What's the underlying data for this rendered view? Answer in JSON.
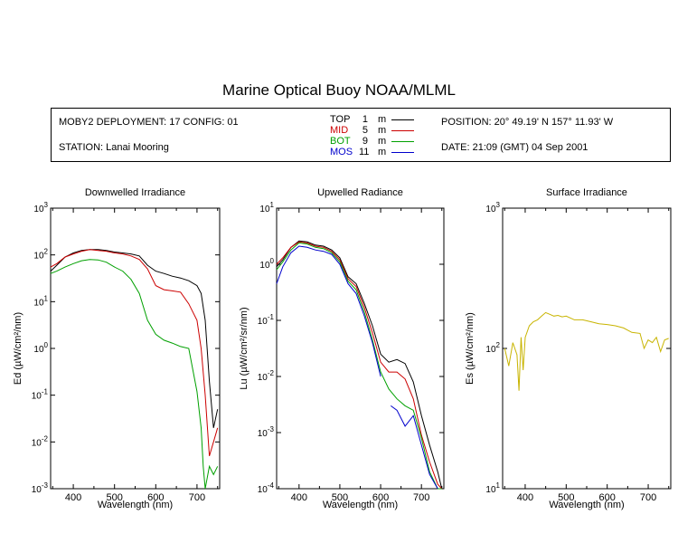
{
  "title": "Marine Optical Buoy NOAA/MLML",
  "header": {
    "deployment": "MOBY2 DEPLOYMENT: 17 CONFIG: 01",
    "station": "STATION: Lanai Mooring",
    "position": "POSITION: 20° 49.19' N   157° 11.93' W",
    "date": "DATE: 21:09 (GMT) 04 Sep 2001"
  },
  "legend": [
    {
      "label": "TOP",
      "depth": "1",
      "unit": "m",
      "color": "#000000"
    },
    {
      "label": "MID",
      "depth": "5",
      "unit": "m",
      "color": "#cc0000"
    },
    {
      "label": "BOT",
      "depth": "9",
      "unit": "m",
      "color": "#00a000"
    },
    {
      "label": "MOS",
      "depth": "11",
      "unit": "m",
      "color": "#0000cc"
    }
  ],
  "chart_data": [
    {
      "type": "line",
      "title": "Downwelled Irradiance",
      "xlabel": "Wavelength (nm)",
      "ylabel": "Ed  (µW/cm²/nm)",
      "xlim": [
        345,
        755
      ],
      "ylim": [
        0.001,
        1000
      ],
      "yscale": "log",
      "xticks": [
        400,
        500,
        600,
        700
      ],
      "yticks": [
        {
          "v": 0.001,
          "b": "10",
          "e": "-3"
        },
        {
          "v": 0.01,
          "b": "10",
          "e": "-2"
        },
        {
          "v": 0.1,
          "b": "10",
          "e": "-1"
        },
        {
          "v": 1,
          "b": "10",
          "e": "0"
        },
        {
          "v": 10,
          "b": "10",
          "e": "1"
        },
        {
          "v": 100,
          "b": "10",
          "e": "2"
        },
        {
          "v": 1000,
          "b": "10",
          "e": "3"
        }
      ],
      "series": [
        {
          "name": "TOP",
          "color": "#000000",
          "x": [
            345,
            360,
            380,
            400,
            420,
            440,
            460,
            480,
            500,
            520,
            540,
            560,
            580,
            600,
            620,
            640,
            660,
            680,
            700,
            710,
            720,
            730,
            740,
            750
          ],
          "y": [
            45,
            60,
            90,
            110,
            125,
            130,
            130,
            125,
            115,
            110,
            105,
            95,
            60,
            45,
            40,
            35,
            32,
            28,
            22,
            15,
            4,
            0.2,
            0.02,
            0.05
          ]
        },
        {
          "name": "MID",
          "color": "#cc0000",
          "x": [
            345,
            360,
            380,
            400,
            420,
            440,
            460,
            480,
            500,
            520,
            540,
            560,
            580,
            600,
            620,
            640,
            660,
            680,
            700,
            710,
            720,
            730,
            740,
            750
          ],
          "y": [
            55,
            65,
            90,
            105,
            120,
            130,
            125,
            120,
            110,
            105,
            95,
            80,
            50,
            22,
            18,
            17,
            16,
            9,
            4,
            1,
            0.1,
            0.005,
            0.01,
            0.02
          ]
        },
        {
          "name": "BOT",
          "color": "#00a000",
          "x": [
            345,
            360,
            380,
            400,
            420,
            440,
            460,
            480,
            500,
            520,
            540,
            560,
            580,
            600,
            620,
            640,
            660,
            680,
            700,
            710,
            715,
            720,
            730,
            740,
            750
          ],
          "y": [
            40,
            45,
            55,
            65,
            75,
            80,
            78,
            70,
            55,
            45,
            30,
            15,
            4,
            2,
            1.5,
            1.3,
            1.1,
            1,
            0.12,
            0.02,
            0.003,
            0.001,
            0.003,
            0.002,
            0.003
          ]
        }
      ]
    },
    {
      "type": "line",
      "title": "Upwelled Radiance",
      "xlabel": "Wavelength (nm)",
      "ylabel": "Lu  (µW/cm²/sr/nm)",
      "xlim": [
        345,
        755
      ],
      "ylim": [
        0.0001,
        10
      ],
      "yscale": "log",
      "xticks": [
        400,
        500,
        600,
        700
      ],
      "yticks": [
        {
          "v": 0.0001,
          "b": "10",
          "e": "-4"
        },
        {
          "v": 0.001,
          "b": "10",
          "e": "-3"
        },
        {
          "v": 0.01,
          "b": "10",
          "e": "-2"
        },
        {
          "v": 0.1,
          "b": "10",
          "e": "-1"
        },
        {
          "v": 1,
          "b": "10",
          "e": "0"
        },
        {
          "v": 10,
          "b": "10",
          "e": "1"
        }
      ],
      "series": [
        {
          "name": "TOP",
          "color": "#000000",
          "x": [
            345,
            360,
            380,
            400,
            420,
            440,
            460,
            480,
            500,
            520,
            540,
            560,
            580,
            600,
            620,
            640,
            660,
            680,
            700,
            720,
            740,
            750
          ],
          "y": [
            0.9,
            1.2,
            2,
            2.6,
            2.5,
            2.2,
            2.1,
            1.8,
            1.3,
            0.6,
            0.45,
            0.2,
            0.08,
            0.025,
            0.018,
            0.02,
            0.017,
            0.008,
            0.002,
            0.0006,
            0.0002,
            0.0001
          ]
        },
        {
          "name": "MID",
          "color": "#cc0000",
          "x": [
            345,
            360,
            380,
            400,
            420,
            440,
            460,
            480,
            500,
            520,
            540,
            560,
            580,
            600,
            620,
            640,
            660,
            680,
            700,
            720,
            740,
            750
          ],
          "y": [
            1,
            1.3,
            2,
            2.5,
            2.4,
            2.1,
            2,
            1.7,
            1.2,
            0.55,
            0.4,
            0.17,
            0.06,
            0.018,
            0.012,
            0.012,
            0.009,
            0.004,
            0.0009,
            0.0003,
            0.00012,
            0.0001
          ]
        },
        {
          "name": "BOT",
          "color": "#00a000",
          "x": [
            345,
            360,
            380,
            400,
            420,
            440,
            460,
            480,
            500,
            520,
            540,
            560,
            580,
            600,
            620,
            640,
            660,
            680,
            700,
            720,
            740,
            750
          ],
          "y": [
            0.8,
            1.1,
            1.8,
            2.4,
            2.3,
            2,
            1.9,
            1.6,
            1.1,
            0.5,
            0.35,
            0.14,
            0.045,
            0.012,
            0.006,
            0.004,
            0.003,
            0.0025,
            0.0008,
            0.0002,
            0.0001,
            0.0001
          ]
        },
        {
          "name": "MOS",
          "color": "#0000cc",
          "x": [
            345,
            360,
            380,
            400,
            420,
            440,
            460,
            480,
            500,
            520,
            540,
            560,
            580,
            600,
            620,
            625,
            640,
            660,
            680,
            700,
            720,
            740
          ],
          "y": [
            0.45,
            0.9,
            1.6,
            2.1,
            2,
            1.8,
            1.7,
            1.5,
            1,
            0.45,
            0.3,
            0.12,
            0.04,
            0.01,
            null,
            0.003,
            0.0025,
            0.0013,
            0.002,
            0.0006,
            0.00018,
            0.0001
          ]
        }
      ]
    },
    {
      "type": "line",
      "title": "Surface Irradiance",
      "xlabel": "Wavelength (nm)",
      "ylabel": "Es  (µW/cm²/nm)",
      "xlim": [
        345,
        755
      ],
      "ylim": [
        10,
        1000
      ],
      "yscale": "log",
      "xticks": [
        400,
        500,
        600,
        700
      ],
      "yticks": [
        {
          "v": 10,
          "b": "10",
          "e": "1"
        },
        {
          "v": 100,
          "b": "10",
          "e": "2"
        },
        {
          "v": 1000,
          "b": "10",
          "e": "3"
        }
      ],
      "series": [
        {
          "name": "Es",
          "color": "#c8b400",
          "x": [
            350,
            360,
            370,
            380,
            385,
            390,
            395,
            400,
            410,
            420,
            430,
            440,
            450,
            460,
            470,
            480,
            490,
            500,
            520,
            540,
            560,
            580,
            600,
            620,
            640,
            660,
            680,
            690,
            700,
            710,
            720,
            730,
            740,
            750
          ],
          "y": [
            100,
            75,
            110,
            90,
            50,
            120,
            70,
            120,
            145,
            155,
            160,
            170,
            180,
            175,
            170,
            172,
            168,
            170,
            160,
            160,
            155,
            150,
            148,
            145,
            140,
            130,
            128,
            100,
            115,
            110,
            120,
            95,
            115,
            118
          ]
        }
      ]
    }
  ]
}
